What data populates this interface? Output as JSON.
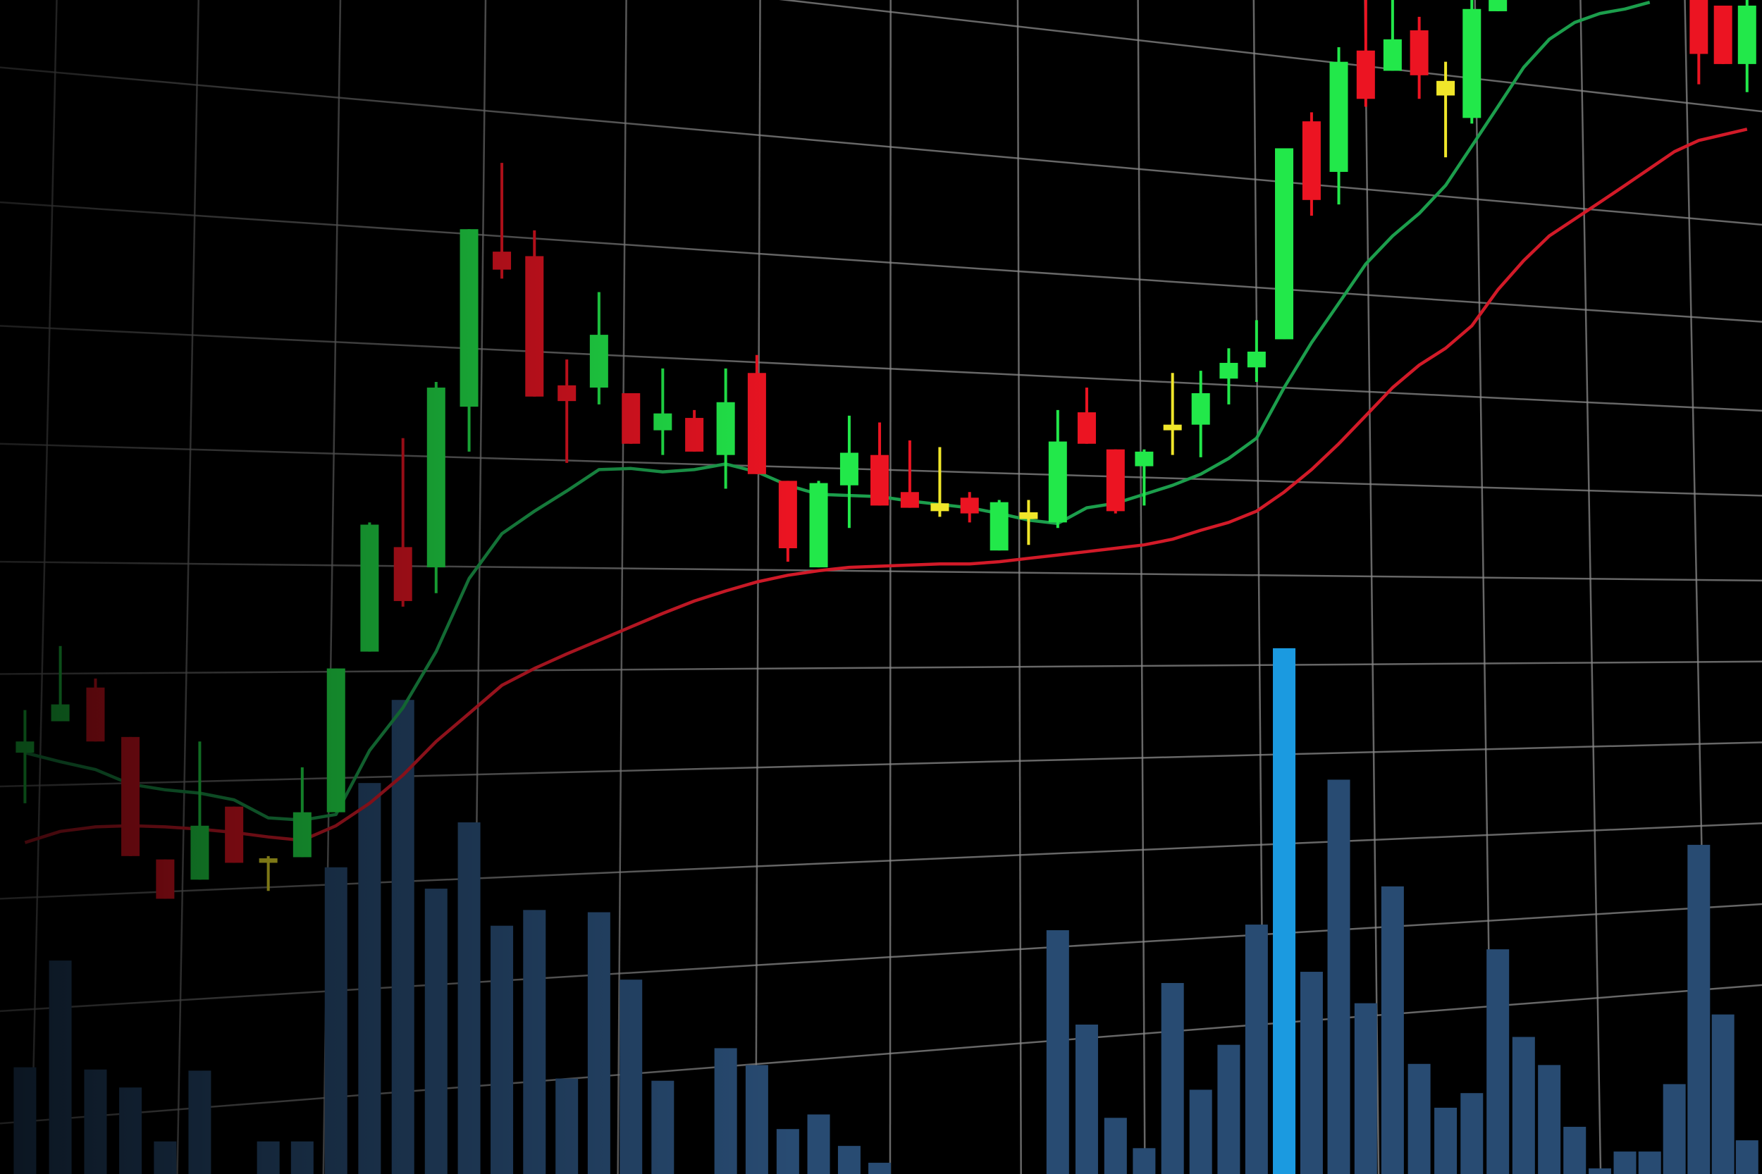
{
  "chart_data": {
    "type": "candlestick",
    "x": [
      0,
      1,
      2,
      3,
      4,
      5,
      6,
      7,
      8,
      9,
      10,
      11,
      12,
      13,
      14,
      15,
      16,
      17,
      18,
      19,
      20,
      21,
      22,
      23,
      24,
      25,
      26,
      27,
      28,
      29,
      30,
      31,
      32,
      33,
      34,
      35,
      36,
      37,
      38,
      39,
      40,
      41,
      42,
      43,
      44,
      45,
      46,
      47,
      48,
      56,
      57,
      58
    ],
    "open": [
      375,
      403,
      433,
      389,
      280,
      262,
      327,
      281,
      282,
      322,
      465,
      558,
      540,
      683,
      821,
      817,
      702,
      700,
      695,
      662,
      673,
      640,
      713,
      617,
      540,
      613,
      640,
      607,
      597,
      602,
      555,
      583,
      580,
      678,
      645,
      630,
      662,
      667,
      708,
      718,
      743,
      937,
      892,
      1000,
      982,
      1018,
      973,
      940,
      1035,
      1045,
      1040,
      988
    ],
    "high": [
      413,
      470,
      441,
      389,
      280,
      385,
      327,
      283,
      362,
      450,
      580,
      655,
      705,
      841,
      900,
      840,
      725,
      785,
      695,
      717,
      680,
      717,
      729,
      617,
      617,
      675,
      669,
      653,
      647,
      607,
      600,
      600,
      680,
      700,
      645,
      645,
      713,
      715,
      735,
      760,
      913,
      945,
      1003,
      1045,
      1045,
      1030,
      990,
      1045,
      1045,
      1045,
      1040,
      1045
    ],
    "low": [
      330,
      403,
      385,
      283,
      245,
      262,
      277,
      252,
      282,
      322,
      465,
      505,
      517,
      643,
      797,
      692,
      633,
      685,
      650,
      640,
      643,
      610,
      623,
      545,
      540,
      575,
      595,
      593,
      585,
      580,
      555,
      560,
      575,
      650,
      588,
      595,
      640,
      638,
      685,
      705,
      743,
      853,
      863,
      950,
      982,
      957,
      905,
      935,
      1035,
      970,
      988,
      963
    ],
    "close": [
      385,
      418,
      385,
      283,
      245,
      310,
      277,
      277,
      322,
      450,
      578,
      510,
      700,
      841,
      805,
      692,
      688,
      747,
      650,
      677,
      643,
      687,
      623,
      557,
      615,
      642,
      595,
      593,
      590,
      588,
      598,
      589,
      652,
      650,
      590,
      643,
      667,
      695,
      722,
      732,
      913,
      867,
      990,
      957,
      1010,
      978,
      960,
      1037,
      1045,
      997,
      988,
      1040
    ],
    "colors": [
      "#22e84a",
      "#22e84a",
      "#ec1422",
      "#ec1422",
      "#ec1422",
      "#22e84a",
      "#ec1422",
      "#f0e62a",
      "#22e84a",
      "#22e84a",
      "#22e84a",
      "#ec1422",
      "#22e84a",
      "#22e84a",
      "#ec1422",
      "#ec1422",
      "#ec1422",
      "#22e84a",
      "#ec1422",
      "#22e84a",
      "#ec1422",
      "#22e84a",
      "#ec1422",
      "#ec1422",
      "#22e84a",
      "#22e84a",
      "#ec1422",
      "#ec1422",
      "#f0e62a",
      "#ec1422",
      "#22e84a",
      "#f0e62a",
      "#22e84a",
      "#ec1422",
      "#ec1422",
      "#22e84a",
      "#f0e62a",
      "#22e84a",
      "#22e84a",
      "#22e84a",
      "#22e84a",
      "#ec1422",
      "#22e84a",
      "#ec1422",
      "#22e84a",
      "#ec1422",
      "#f0e62a",
      "#22e84a",
      "#22e84a",
      "#ec1422",
      "#ec1422",
      "#22e84a"
    ],
    "ylim": [
      0,
      1045
    ],
    "y2lim": [
      0,
      1045
    ],
    "grid": true,
    "series": [
      {
        "type": "line",
        "color": "#1c9e4c",
        "x": [
          0,
          1,
          2,
          3,
          4,
          5,
          6,
          7,
          8,
          9,
          10,
          11,
          12,
          13,
          14,
          15,
          16,
          17,
          18,
          19,
          20,
          21,
          22,
          23,
          24,
          25,
          26,
          27,
          28,
          29,
          30,
          31,
          32,
          33,
          34,
          35,
          36,
          37,
          38,
          39,
          40,
          41,
          42,
          43,
          44,
          45,
          46,
          47,
          48,
          49,
          50,
          51,
          52,
          53,
          54
        ],
        "values": [
          375,
          367,
          360,
          347,
          342,
          339,
          333,
          317,
          315,
          320,
          377,
          415,
          465,
          530,
          570,
          590,
          608,
          627,
          628,
          625,
          627,
          632,
          625,
          613,
          605,
          604,
          603,
          599,
          596,
          593,
          588,
          582,
          579,
          593,
          597,
          605,
          613,
          623,
          637,
          655,
          700,
          740,
          775,
          810,
          835,
          855,
          880,
          915,
          950,
          985,
          1010,
          1025,
          1033,
          1037,
          1043
        ]
      },
      {
        "type": "line",
        "color": "#d21a28",
        "x": [
          0,
          1,
          2,
          3,
          4,
          5,
          6,
          7,
          8,
          9,
          10,
          11,
          12,
          13,
          14,
          15,
          16,
          17,
          18,
          19,
          20,
          21,
          22,
          23,
          24,
          25,
          26,
          27,
          28,
          29,
          30,
          31,
          32,
          33,
          34,
          35,
          36,
          37,
          38,
          39,
          40,
          41,
          42,
          43,
          44,
          45,
          46,
          47,
          48,
          49,
          50,
          51,
          52,
          53,
          54,
          55,
          56,
          57,
          58
        ],
        "values": [
          295,
          305,
          309,
          310,
          309,
          307,
          304,
          300,
          297,
          310,
          330,
          355,
          385,
          410,
          435,
          450,
          463,
          475,
          487,
          499,
          510,
          519,
          527,
          533,
          537,
          540,
          541,
          542,
          543,
          543,
          545,
          548,
          551,
          554,
          557,
          560,
          565,
          573,
          580,
          590,
          607,
          627,
          650,
          675,
          700,
          720,
          735,
          755,
          787,
          813,
          835,
          850,
          865,
          880,
          895,
          910,
          920,
          925,
          930
        ]
      },
      {
        "type": "bar",
        "axis": "y2",
        "x": [
          0,
          1,
          2,
          3,
          4,
          5,
          7,
          8,
          9,
          10,
          11,
          12,
          13,
          14,
          15,
          16,
          17,
          18,
          19,
          21,
          22,
          23,
          24,
          25,
          26,
          32,
          33,
          34,
          35,
          36,
          37,
          38,
          39,
          40,
          41,
          42,
          43,
          44,
          45,
          46,
          47,
          48,
          49,
          50,
          51,
          52,
          53,
          54,
          55,
          56,
          57,
          58
        ],
        "values": [
          95,
          190,
          93,
          77,
          29,
          92,
          29,
          29,
          273,
          348,
          422,
          254,
          313,
          221,
          235,
          85,
          233,
          173,
          83,
          112,
          97,
          40,
          53,
          25,
          10,
          217,
          133,
          50,
          23,
          170,
          75,
          115,
          222,
          468,
          180,
          351,
          152,
          256,
          98,
          59,
          72,
          200,
          122,
          97,
          42,
          5,
          20,
          20,
          80,
          293,
          142,
          30
        ],
        "colors": [
          "#284b72",
          "#284b72",
          "#284b72",
          "#284b72",
          "#284b72",
          "#284b72",
          "#284b72",
          "#284b72",
          "#284b72",
          "#284b72",
          "#284b72",
          "#284b72",
          "#284b72",
          "#284b72",
          "#284b72",
          "#284b72",
          "#284b72",
          "#284b72",
          "#284b72",
          "#284b72",
          "#284b72",
          "#284b72",
          "#284b72",
          "#284b72",
          "#284b72",
          "#284b72",
          "#284b72",
          "#284b72",
          "#284b72",
          "#284b72",
          "#284b72",
          "#284b72",
          "#284b72",
          "#1b9ae0",
          "#284b72",
          "#284b72",
          "#284b72",
          "#284b72",
          "#284b72",
          "#284b72",
          "#284b72",
          "#284b72",
          "#284b72",
          "#284b72",
          "#284b72",
          "#284b72",
          "#284b72",
          "#284b72",
          "#284b72",
          "#284b72",
          "#284b72",
          "#284b72"
        ]
      }
    ]
  }
}
